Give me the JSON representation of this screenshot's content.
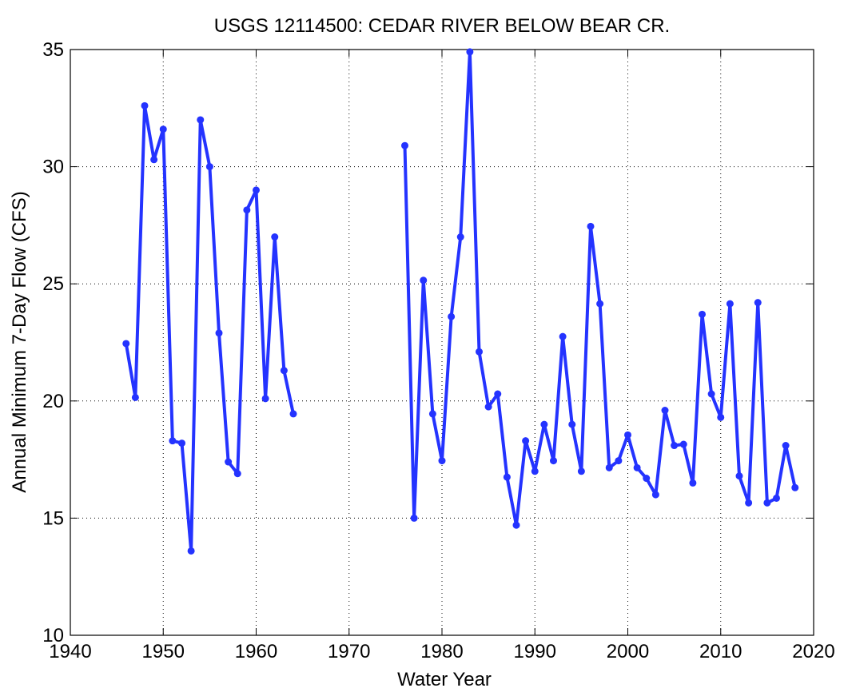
{
  "chart_data": {
    "type": "line",
    "title": "USGS 12114500: CEDAR RIVER BELOW BEAR CR.",
    "xlabel": "Water Year",
    "ylabel": "Annual Minimum 7-Day Flow (CFS)",
    "xlim": [
      1940,
      2020
    ],
    "ylim": [
      10,
      35
    ],
    "xticks": [
      1940,
      1950,
      1960,
      1970,
      1980,
      1990,
      2000,
      2010,
      2020
    ],
    "yticks": [
      10,
      15,
      20,
      25,
      30,
      35
    ],
    "xtick_labels": [
      "1940",
      "1950",
      "1960",
      "1970",
      "1980",
      "1990",
      "2000",
      "2010",
      "2020"
    ],
    "ytick_labels": [
      "10",
      "15",
      "20",
      "25",
      "30",
      "35"
    ],
    "grid": true,
    "color": "#2433ff",
    "series": [
      {
        "name": "Annual Minimum 7-Day Flow",
        "x": [
          1946,
          1947,
          1948,
          1949,
          1950,
          1951,
          1952,
          1953,
          1954,
          1955,
          1956,
          1957,
          1958,
          1959,
          1960,
          1961,
          1962,
          1963,
          1964,
          1976,
          1977,
          1978,
          1979,
          1980,
          1981,
          1982,
          1983,
          1984,
          1985,
          1986,
          1987,
          1988,
          1989,
          1990,
          1991,
          1992,
          1993,
          1994,
          1995,
          1996,
          1997,
          1998,
          1999,
          2000,
          2001,
          2002,
          2003,
          2004,
          2005,
          2006,
          2007,
          2008,
          2009,
          2010,
          2011,
          2012,
          2013,
          2014,
          2015,
          2016,
          2017,
          2018
        ],
        "y": [
          22.45,
          20.15,
          32.6,
          30.3,
          31.6,
          18.3,
          18.2,
          13.6,
          32.0,
          30.0,
          22.9,
          17.4,
          16.9,
          28.15,
          29.0,
          20.1,
          27.0,
          21.3,
          19.45,
          30.9,
          15.0,
          25.15,
          19.45,
          17.45,
          23.6,
          27.0,
          34.9,
          22.1,
          19.75,
          20.3,
          16.75,
          14.7,
          18.3,
          17.0,
          19.0,
          17.45,
          22.75,
          19.0,
          17.0,
          27.45,
          24.15,
          17.15,
          17.45,
          18.55,
          17.15,
          16.7,
          16.0,
          19.6,
          18.1,
          18.15,
          16.5,
          23.7,
          20.3,
          19.3,
          24.15,
          16.8,
          15.65,
          24.2,
          15.65,
          15.85,
          18.1,
          16.3
        ]
      }
    ]
  }
}
